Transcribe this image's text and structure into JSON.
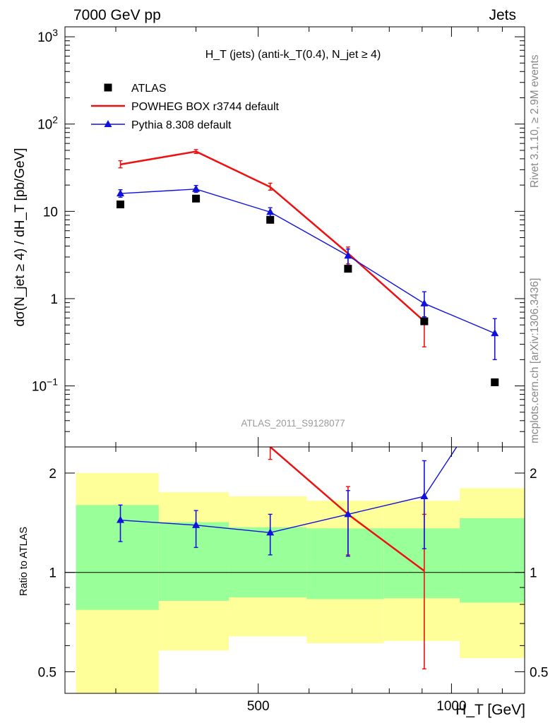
{
  "header": {
    "left": "7000 GeV pp",
    "right": "Jets"
  },
  "side_texts": {
    "rivet": "Rivet 3.1.10, ≥ 2.9M events",
    "source": "mcplots.cern.ch [arXiv:1306.3436]"
  },
  "chart_data": [
    {
      "type": "line",
      "panel": "main",
      "title": "H_T (jets) (anti-k_T(0.4), N_jet ≥ 4)",
      "watermark": "ATLAS_2011_S9128077",
      "ylabel": "dσ(N_jet ≥ 4) / dH_T [pb/GeV]",
      "yscale": "log",
      "ylim": [
        0.02,
        1300
      ],
      "xlim": [
        250,
        1300
      ],
      "yticks": [
        "10^3",
        "10^2",
        "10",
        "1",
        "10^-1"
      ],
      "legend": {
        "position": "top-left"
      },
      "series": [
        {
          "name": "ATLAS",
          "style": "markers",
          "marker": "square",
          "color": "#000000",
          "x": [
            305,
            400,
            522,
            690,
            907,
            1168
          ],
          "y": [
            12,
            14,
            8,
            2.2,
            0.55,
            0.11
          ],
          "xbins": [
            [
              260,
              350
            ],
            [
              350,
              450
            ],
            [
              450,
              595
            ],
            [
              595,
              785
            ],
            [
              785,
              1030
            ],
            [
              1030,
              1300
            ]
          ]
        },
        {
          "name": "POWHEG BOX r3744 default",
          "style": "line",
          "color": "#ee1111",
          "x": [
            305,
            400,
            522,
            690,
            907
          ],
          "y": [
            34.5,
            48.5,
            19,
            3.3,
            0.55
          ],
          "yerr_low": [
            31.5,
            46,
            17.5,
            2.5,
            0.28
          ],
          "yerr_high": [
            38,
            51,
            21,
            3.9,
            0.83
          ]
        },
        {
          "name": "Pythia 8.308 default",
          "style": "line+marker",
          "marker": "triangle",
          "color": "#1111dd",
          "x": [
            305,
            400,
            522,
            690,
            907,
            1168
          ],
          "y": [
            16,
            18,
            9.8,
            3.1,
            0.88,
            0.4
          ],
          "yerr_low": [
            14.5,
            16.5,
            8.7,
            2.4,
            0.62,
            0.2
          ],
          "yerr_high": [
            17.7,
            19.8,
            11,
            3.7,
            1.2,
            0.59
          ]
        }
      ]
    },
    {
      "type": "line",
      "panel": "ratio",
      "ylabel": "Ratio to ATLAS",
      "xlabel": "H_T [GeV]",
      "yscale": "log",
      "ylim": [
        0.43,
        2.4
      ],
      "xlim": [
        250,
        1300
      ],
      "xticks": [
        "500",
        "1000"
      ],
      "yticks": [
        "2",
        "1",
        "0.5"
      ],
      "reference_line": 1,
      "bands": {
        "x_edges": [
          260,
          350,
          450,
          595,
          785,
          1030,
          1300
        ],
        "inner_low": [
          0.77,
          0.82,
          0.84,
          0.83,
          0.835,
          0.81
        ],
        "inner_high": [
          1.6,
          1.42,
          1.37,
          1.36,
          1.36,
          1.46
        ],
        "outer_low": [
          0.42,
          0.58,
          0.64,
          0.61,
          0.62,
          0.55
        ],
        "outer_high": [
          2.0,
          1.75,
          1.7,
          1.65,
          1.65,
          1.8
        ],
        "inner_color": "#99ff99",
        "outer_color": "#ffff99"
      },
      "series": [
        {
          "name": "POWHEG BOX r3744 default",
          "color": "#ee1111",
          "x": [
            522,
            690,
            907
          ],
          "y": [
            2.4,
            1.5,
            1.01
          ],
          "yerr_low": [
            2.2,
            1.13,
            0.51
          ],
          "yerr_high": [
            2.6,
            1.82,
            1.5
          ],
          "extend_from": {
            "x": 500,
            "y": 2.7
          }
        },
        {
          "name": "Pythia 8.308 default",
          "color": "#1111dd",
          "x": [
            305,
            400,
            522,
            690,
            907
          ],
          "y": [
            1.44,
            1.39,
            1.32,
            1.5,
            1.7
          ],
          "yerr_low": [
            1.24,
            1.19,
            1.13,
            1.12,
            1.18
          ],
          "yerr_high": [
            1.6,
            1.54,
            1.5,
            1.77,
            2.18
          ],
          "extend_to": {
            "x": 1168,
            "y": 3.6
          }
        }
      ]
    }
  ]
}
